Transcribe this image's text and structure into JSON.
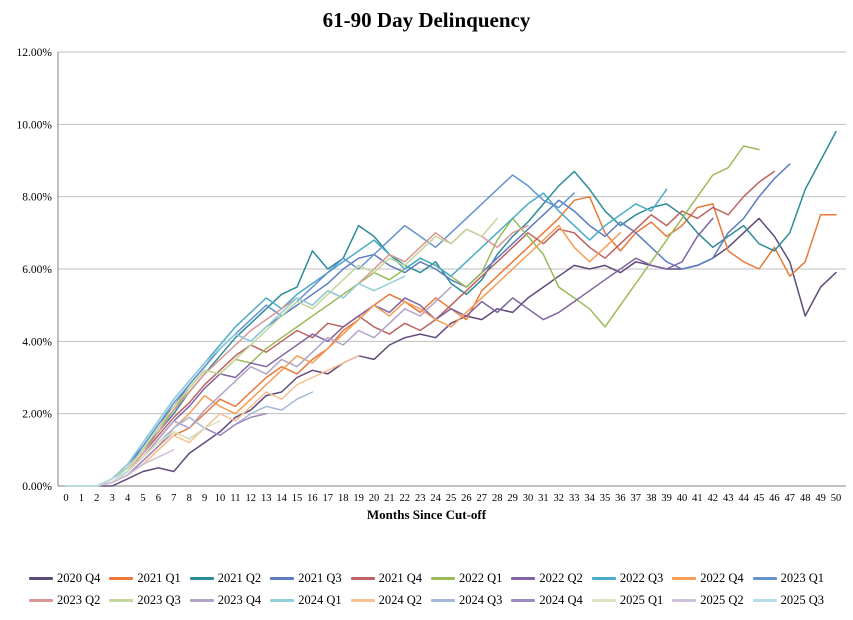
{
  "title": "61-90 Day Delinquency",
  "chart_data": {
    "type": "line",
    "title": "61-90 Day Delinquency",
    "xlabel": "Months Since Cut-off",
    "ylabel": "",
    "x_range": [
      0,
      50
    ],
    "x_tick_step": 1,
    "ylim": [
      0,
      12
    ],
    "y_tick_step": 2,
    "y_tick_suffix": "%",
    "grid": "horizontal",
    "legend_position": "bottom",
    "legend_rows": 2,
    "axis_color": "#808080",
    "grid_color": "#bfbfbf",
    "series": [
      {
        "name": "2020 Q4",
        "color": "#604a7b",
        "values": [
          0,
          0,
          0,
          0,
          0.2,
          0.4,
          0.5,
          0.4,
          0.9,
          1.2,
          1.5,
          1.9,
          2.1,
          2.5,
          2.6,
          3.0,
          3.2,
          3.1,
          3.4,
          3.6,
          3.5,
          3.9,
          4.1,
          4.2,
          4.1,
          4.5,
          4.7,
          4.6,
          4.9,
          4.8,
          5.2,
          5.5,
          5.8,
          6.1,
          6.0,
          6.1,
          5.9,
          6.2,
          6.1,
          6.0,
          6.0,
          6.1,
          6.3,
          6.6,
          7.0,
          7.4,
          6.9,
          6.2,
          4.7,
          5.5,
          5.9
        ]
      },
      {
        "name": "2021 Q1",
        "color": "#e8793a",
        "values": [
          0,
          0,
          0,
          0.1,
          0.3,
          0.6,
          1.0,
          1.4,
          1.6,
          2.0,
          2.4,
          2.2,
          2.6,
          3.0,
          3.3,
          3.1,
          3.5,
          3.8,
          4.3,
          4.6,
          5.0,
          5.3,
          5.1,
          4.8,
          5.2,
          4.9,
          4.6,
          5.4,
          5.8,
          6.2,
          6.6,
          7.0,
          7.4,
          7.9,
          8.0,
          7.0,
          6.5,
          7.0,
          7.3,
          6.9,
          7.2,
          7.7,
          7.8,
          6.5,
          6.2,
          6.0,
          6.6,
          5.8,
          6.2,
          7.5,
          7.5
        ]
      },
      {
        "name": "2021 Q2",
        "color": "#2e8b9a",
        "values": [
          0,
          0,
          0,
          0.2,
          0.5,
          1.0,
          1.5,
          2.0,
          2.6,
          3.1,
          3.6,
          4.1,
          4.5,
          4.9,
          5.3,
          5.5,
          6.5,
          6.0,
          6.3,
          7.2,
          6.9,
          6.4,
          6.1,
          5.9,
          6.2,
          5.6,
          5.3,
          5.7,
          6.4,
          6.9,
          7.3,
          7.8,
          8.3,
          8.7,
          8.2,
          7.6,
          7.2,
          7.5,
          7.7,
          7.8,
          7.5,
          7.0,
          6.6,
          6.9,
          7.2,
          6.7,
          6.5,
          7.0,
          8.2,
          9.0,
          9.8
        ]
      },
      {
        "name": "2021 Q3",
        "color": "#5c7dc4",
        "values": [
          0,
          0,
          0,
          0.2,
          0.6,
          1.1,
          1.7,
          2.2,
          2.8,
          3.3,
          3.8,
          4.2,
          4.0,
          4.4,
          4.7,
          5.0,
          5.3,
          5.6,
          6.0,
          6.3,
          6.4,
          6.1,
          5.9,
          6.2,
          6.0,
          5.7,
          5.5,
          5.9,
          6.3,
          6.7,
          7.1,
          7.5,
          7.9,
          7.6,
          7.2,
          6.9,
          7.3,
          7.0,
          6.6,
          6.2,
          6.0,
          6.1,
          6.3,
          7.0,
          7.4,
          8.0,
          8.5,
          8.9
        ]
      },
      {
        "name": "2021 Q4",
        "color": "#bc6360",
        "values": [
          0,
          0,
          0,
          0.1,
          0.4,
          0.9,
          1.4,
          1.9,
          2.3,
          2.8,
          3.2,
          3.6,
          3.9,
          3.7,
          4.0,
          4.3,
          4.1,
          4.5,
          4.4,
          4.7,
          4.4,
          4.2,
          4.5,
          4.3,
          4.6,
          5.0,
          5.4,
          5.8,
          6.2,
          6.6,
          7.0,
          6.7,
          7.1,
          7.0,
          6.6,
          6.3,
          6.7,
          7.1,
          7.5,
          7.2,
          7.6,
          7.4,
          7.7,
          7.5,
          8.0,
          8.4,
          8.7
        ]
      },
      {
        "name": "2022 Q1",
        "color": "#9bbb59",
        "values": [
          0,
          0,
          0,
          0.2,
          0.5,
          1.0,
          1.6,
          2.1,
          2.7,
          3.2,
          3.1,
          3.5,
          3.4,
          3.8,
          4.1,
          4.4,
          4.7,
          5.0,
          5.3,
          5.6,
          5.9,
          5.7,
          6.0,
          6.3,
          6.1,
          5.8,
          5.5,
          5.9,
          6.8,
          7.4,
          6.9,
          6.4,
          5.5,
          5.2,
          4.9,
          4.4,
          5.0,
          5.6,
          6.2,
          6.8,
          7.4,
          8.0,
          8.6,
          8.8,
          9.4,
          9.3
        ]
      },
      {
        "name": "2022 Q2",
        "color": "#8064a2",
        "values": [
          0,
          0,
          0,
          0.1,
          0.4,
          0.8,
          1.3,
          1.8,
          2.2,
          2.7,
          3.1,
          3.0,
          3.4,
          3.3,
          3.6,
          3.9,
          4.2,
          4.0,
          4.4,
          4.7,
          5.0,
          4.8,
          5.2,
          5.0,
          4.6,
          4.9,
          4.7,
          5.1,
          4.8,
          5.2,
          4.9,
          4.6,
          4.8,
          5.1,
          5.4,
          5.7,
          6.0,
          6.3,
          6.1,
          6.0,
          6.2,
          6.9,
          7.4
        ]
      },
      {
        "name": "2022 Q3",
        "color": "#4bacc6",
        "values": [
          0,
          0,
          0,
          0.2,
          0.6,
          1.2,
          1.8,
          2.4,
          2.9,
          3.4,
          3.9,
          4.4,
          4.8,
          5.2,
          4.9,
          5.3,
          5.6,
          5.9,
          6.2,
          6.5,
          6.8,
          6.4,
          6.0,
          6.3,
          6.1,
          5.8,
          6.2,
          6.6,
          7.0,
          7.4,
          7.8,
          8.1,
          7.6,
          7.2,
          6.8,
          7.2,
          7.5,
          7.8,
          7.6,
          8.2
        ]
      },
      {
        "name": "2022 Q4",
        "color": "#f59d56",
        "values": [
          0,
          0,
          0,
          0.1,
          0.3,
          0.7,
          1.1,
          1.6,
          2.0,
          2.5,
          2.2,
          2.0,
          2.4,
          2.8,
          3.2,
          3.6,
          3.4,
          3.8,
          4.2,
          4.6,
          5.0,
          4.7,
          5.1,
          4.9,
          4.6,
          4.4,
          4.8,
          5.2,
          5.6,
          6.0,
          6.4,
          6.8,
          7.2,
          6.6,
          6.2,
          6.6,
          7.0
        ]
      },
      {
        "name": "2023 Q1",
        "color": "#6593cf",
        "values": [
          0,
          0,
          0,
          0.2,
          0.5,
          1.1,
          1.7,
          2.3,
          2.8,
          3.3,
          3.8,
          4.2,
          4.6,
          5.0,
          4.7,
          5.1,
          5.5,
          5.9,
          6.3,
          6.0,
          6.4,
          6.8,
          7.2,
          6.9,
          6.6,
          7.0,
          7.4,
          7.8,
          8.2,
          8.6,
          8.3,
          7.9,
          7.7,
          8.1
        ]
      },
      {
        "name": "2023 Q2",
        "color": "#d99694",
        "values": [
          0,
          0,
          0,
          0.1,
          0.4,
          0.9,
          1.5,
          2.1,
          2.6,
          3.1,
          3.5,
          3.9,
          4.3,
          4.6,
          4.9,
          5.2,
          5.0,
          5.4,
          5.2,
          5.6,
          6.0,
          6.4,
          6.2,
          6.6,
          7.0,
          6.7,
          7.1,
          6.9,
          6.6,
          7.0,
          7.2
        ]
      },
      {
        "name": "2023 Q3",
        "color": "#c3d69b",
        "values": [
          0,
          0,
          0,
          0.2,
          0.5,
          1.0,
          1.6,
          2.2,
          2.7,
          3.2,
          3.1,
          3.5,
          3.9,
          4.3,
          4.7,
          5.1,
          4.9,
          5.3,
          5.7,
          6.1,
          5.9,
          6.3,
          6.1,
          6.5,
          6.9,
          6.7,
          7.1,
          6.9,
          7.4
        ]
      },
      {
        "name": "2023 Q4",
        "color": "#b3a2c7",
        "values": [
          0,
          0,
          0,
          0.1,
          0.4,
          0.8,
          1.3,
          1.8,
          1.6,
          2.1,
          2.5,
          2.9,
          3.3,
          3.1,
          3.5,
          3.3,
          3.7,
          4.1,
          3.9,
          4.3,
          4.1,
          4.5,
          4.9,
          4.7,
          5.1,
          5.5
        ]
      },
      {
        "name": "2024 Q1",
        "color": "#92cddc",
        "values": [
          0,
          0,
          0,
          0.2,
          0.6,
          1.2,
          1.8,
          2.4,
          2.9,
          3.4,
          3.8,
          4.2,
          4.0,
          4.4,
          4.8,
          5.2,
          5.0,
          5.4,
          5.2,
          5.6,
          5.4,
          5.6,
          5.8
        ]
      },
      {
        "name": "2024 Q2",
        "color": "#fac090",
        "values": [
          0,
          0,
          0,
          0.1,
          0.3,
          0.6,
          1.0,
          1.4,
          1.2,
          1.6,
          2.0,
          1.8,
          2.2,
          2.6,
          2.4,
          2.8,
          3.0,
          3.2,
          3.4,
          3.6
        ]
      },
      {
        "name": "2024 Q3",
        "color": "#a6b8d8",
        "values": [
          0,
          0,
          0,
          0.1,
          0.4,
          0.8,
          1.2,
          1.6,
          1.9,
          1.6,
          1.4,
          1.7,
          2.0,
          2.2,
          2.1,
          2.4,
          2.6
        ]
      },
      {
        "name": "2024 Q4",
        "color": "#9c8ac0",
        "values": [
          0,
          0,
          0,
          0.1,
          0.3,
          0.7,
          1.1,
          1.5,
          1.3,
          1.6,
          1.4,
          1.7,
          1.9,
          2.0
        ]
      },
      {
        "name": "2025 Q1",
        "color": "#d7e4bd",
        "values": [
          0,
          0,
          0,
          0.1,
          0.4,
          0.8,
          1.2,
          1.5,
          1.3,
          1.6,
          1.8
        ]
      },
      {
        "name": "2025 Q2",
        "color": "#ccc1d9",
        "values": [
          0,
          0,
          0,
          0.1,
          0.3,
          0.6,
          0.8,
          1.0
        ]
      },
      {
        "name": "2025 Q3",
        "color": "#b7dee8",
        "values": [
          0,
          0,
          0,
          0.2,
          0.4
        ]
      }
    ]
  }
}
